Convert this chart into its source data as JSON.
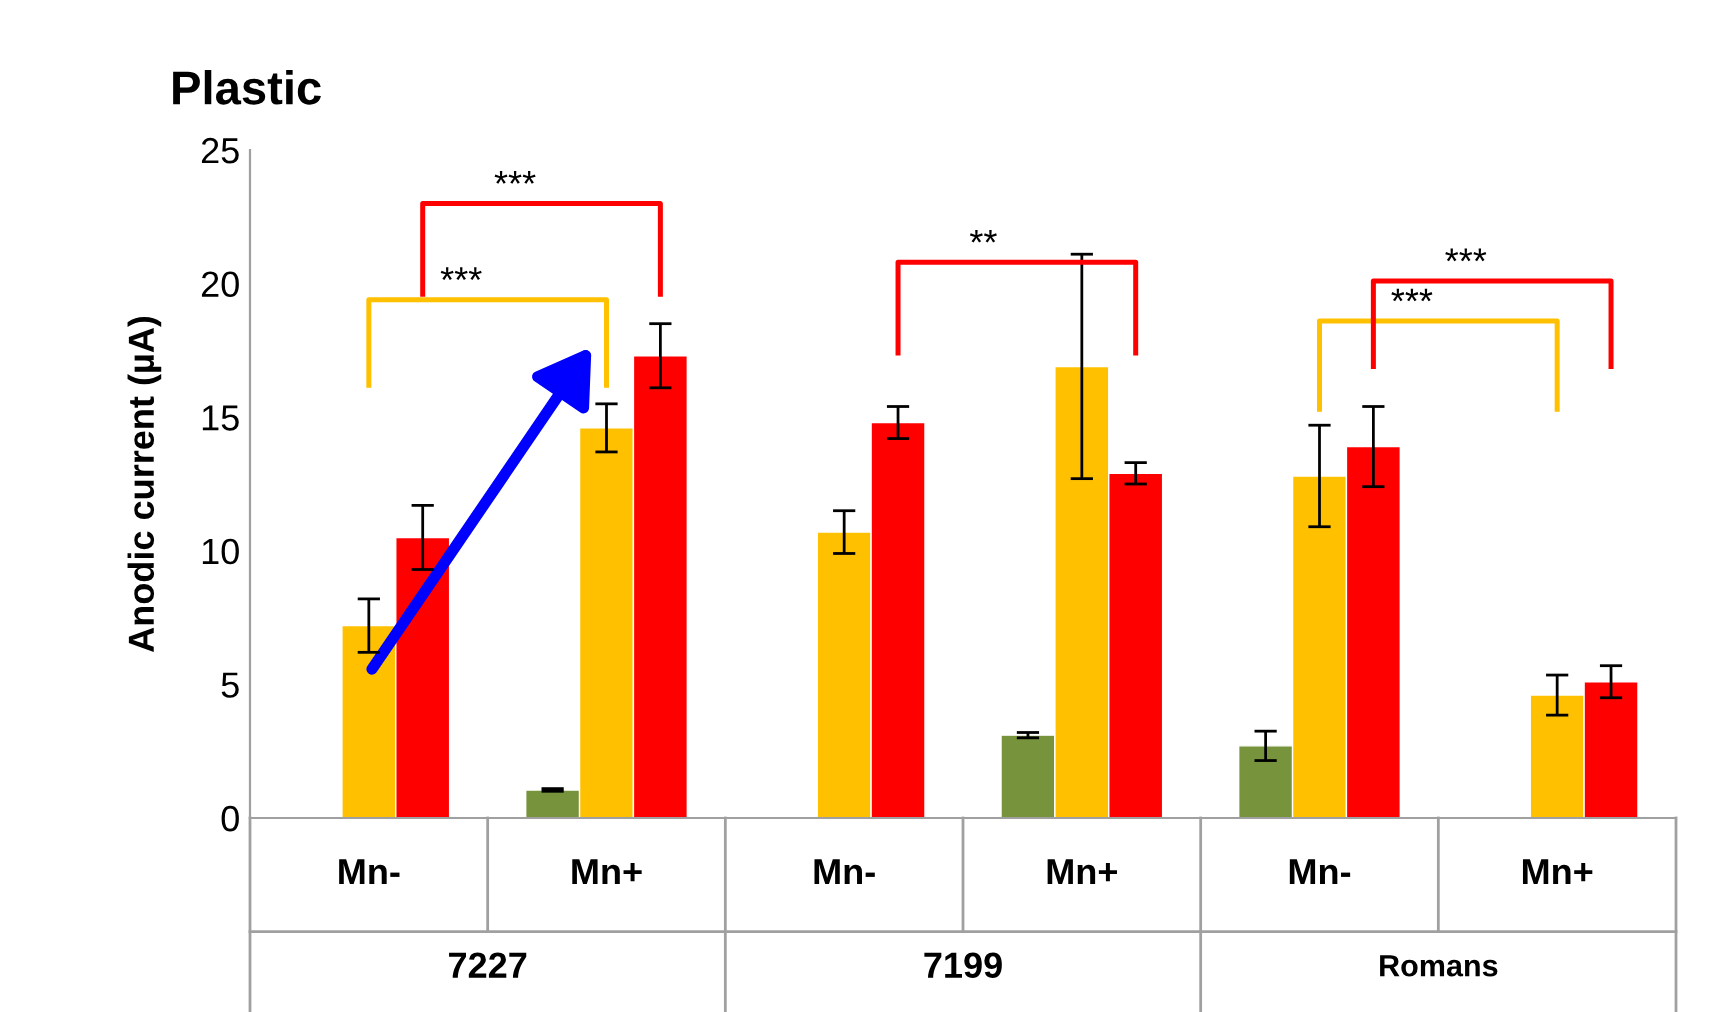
{
  "chart_data": {
    "type": "bar",
    "title": "Plastic",
    "ylabel": "Anodic current (µA)",
    "categories": [
      "Mn-",
      "Mn+",
      "Mn-",
      "Mn+",
      "Mn-",
      "Mn+"
    ],
    "series": [
      {
        "color": "#77933c",
        "values": [
          null,
          1.05,
          null,
          3.1,
          2.7,
          null
        ],
        "errors": [
          null,
          0.05,
          null,
          0.1,
          0.55,
          null
        ]
      },
      {
        "color": "#ffc000",
        "values": [
          7.2,
          14.6,
          10.7,
          16.9,
          12.8,
          4.6
        ],
        "errors": [
          1.0,
          0.9,
          0.8,
          4.2,
          1.9,
          0.75
        ]
      },
      {
        "color": "#ff0000",
        "values": [
          10.5,
          17.3,
          14.8,
          12.9,
          13.9,
          5.1
        ],
        "errors": [
          1.2,
          1.2,
          0.6,
          0.4,
          1.5,
          0.6
        ]
      }
    ],
    "ylim": [
      0,
      25
    ],
    "yticks": [
      0,
      5,
      10,
      15,
      20,
      25
    ],
    "grid": false,
    "legend": false,
    "annotations": [
      "***",
      "***",
      "**",
      "***",
      "***",
      "7227",
      "7199",
      "Romans"
    ]
  }
}
